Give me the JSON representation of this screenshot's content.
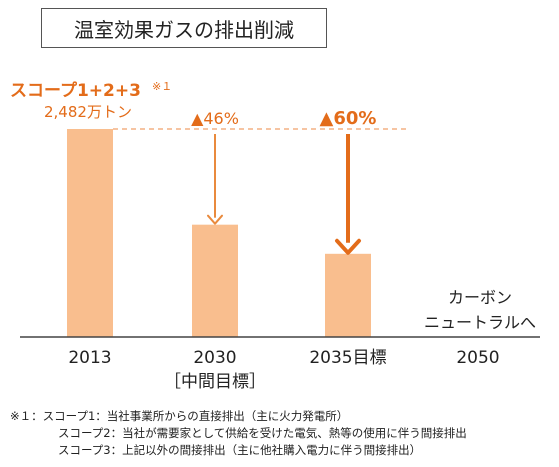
{
  "title": "温室効果ガスの排出削減",
  "scope_label": "スコープ1+2+3",
  "scope_footnote_mark": "※１",
  "base_value_label": "2,482万トン",
  "neutral_label_line1": "カーボン",
  "neutral_label_line2": "ニュートラルへ",
  "colors": {
    "bar": "#f9be8e",
    "accent": "#e36c1a",
    "dashed": "#f4b183",
    "arrow_2030": "#e98a3d"
  },
  "chart_data": {
    "type": "bar",
    "categories": [
      "2013",
      "2030",
      "2035目標",
      "2050"
    ],
    "category_sublabels": [
      "",
      "［中間目標］",
      "",
      ""
    ],
    "values": [
      100,
      54,
      40,
      0
    ],
    "unit": "%",
    "ylim": [
      0,
      100
    ],
    "annotations": [
      {
        "category": "2030",
        "text": "▲46%"
      },
      {
        "category": "2035目標",
        "text": "▲60%"
      }
    ]
  },
  "footnotes": [
    "※１：スコープ1：当社事業所からの直接排出（主に火力発電所）",
    "スコープ2：当社が需要家として供給を受けた電気、熱等の使用に伴う間接排出",
    "スコープ3：上記以外の間接排出（主に他社購入電力に伴う間接排出）"
  ]
}
